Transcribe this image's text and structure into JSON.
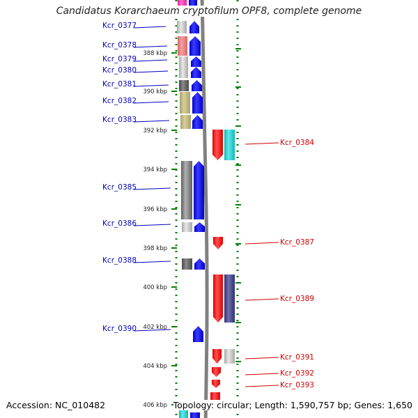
{
  "title": "Candidatus Korarchaeum cryptofilum OPF8, complete genome",
  "footer": {
    "accession": "Accession: NC_010482",
    "topology": "Topology: circular; Length: 1,590,757 bp; Genes: 1,650"
  },
  "colors": {
    "forward_arrow": "#0000ee",
    "reverse_arrow": "#ff0000",
    "forward_label": "#0000bb",
    "reverse_label": "#cc0000",
    "backbone": "#808080",
    "scale_ticks": "#008000"
  },
  "scale_labels": [
    "388 kbp",
    "390 kbp",
    "392 kbp",
    "394 kbp",
    "396 kbp",
    "398 kbp",
    "400 kbp",
    "402 kbp",
    "404 kbp",
    "406 kbp"
  ],
  "genes": [
    {
      "label": "Kcr_0377",
      "strand": "+"
    },
    {
      "label": "Kcr_0378",
      "strand": "+"
    },
    {
      "label": "Kcr_0379",
      "strand": "+"
    },
    {
      "label": "Kcr_0380",
      "strand": "+"
    },
    {
      "label": "Kcr_0381",
      "strand": "+"
    },
    {
      "label": "Kcr_0382",
      "strand": "+"
    },
    {
      "label": "Kcr_0383",
      "strand": "+"
    },
    {
      "label": "Kcr_0384",
      "strand": "-"
    },
    {
      "label": "Kcr_0385",
      "strand": "+"
    },
    {
      "label": "Kcr_0386",
      "strand": "+"
    },
    {
      "label": "Kcr_0387",
      "strand": "-"
    },
    {
      "label": "Kcr_0388",
      "strand": "+"
    },
    {
      "label": "Kcr_0389",
      "strand": "-"
    },
    {
      "label": "Kcr_0390",
      "strand": "+"
    },
    {
      "label": "Kcr_0391",
      "strand": "-"
    },
    {
      "label": "Kcr_0392",
      "strand": "-"
    },
    {
      "label": "Kcr_0393",
      "strand": "-"
    }
  ]
}
